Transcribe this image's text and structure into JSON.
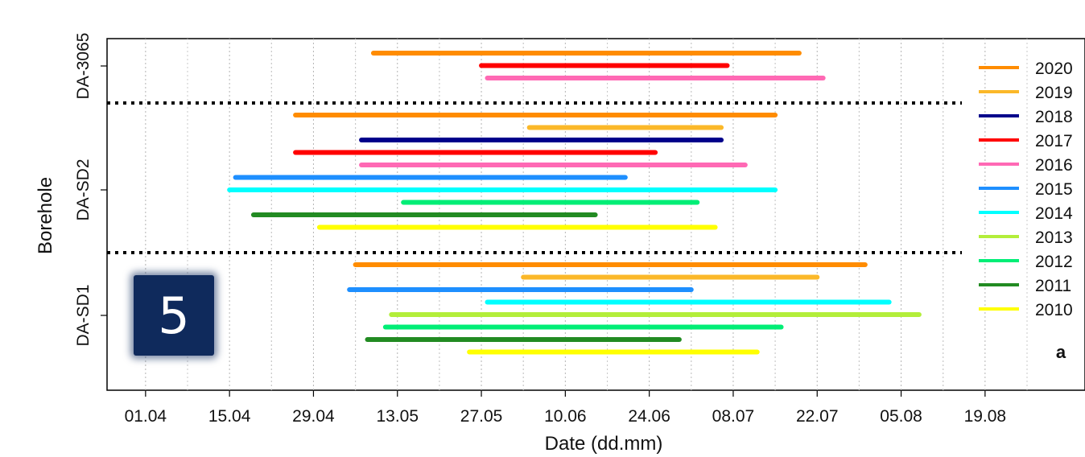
{
  "chart_data": {
    "type": "gantt",
    "xlabel": "Date (dd.mm)",
    "ylabel": "Borehole",
    "xlim": [
      "2022-03-19",
      "2022-09-05"
    ],
    "x_ticks": [
      "01.04",
      "15.04",
      "29.04",
      "13.05",
      "27.05",
      "10.06",
      "24.06",
      "08.07",
      "22.07",
      "05.08",
      "19.08"
    ],
    "grid": "vertical dotted",
    "groups": [
      "DA-3065",
      "DA-SD2",
      "DA-SD1"
    ],
    "group_separator": "dotted horizontal line",
    "legend_position": "right",
    "panel_label": "a",
    "series": [
      {
        "name": "2020",
        "color": "#ff8c00"
      },
      {
        "name": "2019",
        "color": "#fbb829"
      },
      {
        "name": "2018",
        "color": "#00008b"
      },
      {
        "name": "2017",
        "color": "#ff0000"
      },
      {
        "name": "2016",
        "color": "#ff69b4"
      },
      {
        "name": "2015",
        "color": "#1e8fff"
      },
      {
        "name": "2014",
        "color": "#00ffff"
      },
      {
        "name": "2013",
        "color": "#b3ee3a"
      },
      {
        "name": "2012",
        "color": "#00ee76"
      },
      {
        "name": "2011",
        "color": "#228b22"
      },
      {
        "name": "2010",
        "color": "#ffff00"
      }
    ],
    "bars": [
      {
        "group": "DA-3065",
        "year": "2020",
        "start": "2022-05-09",
        "end": "2022-07-19"
      },
      {
        "group": "DA-3065",
        "year": "2017",
        "start": "2022-05-27",
        "end": "2022-07-07"
      },
      {
        "group": "DA-3065",
        "year": "2016",
        "start": "2022-05-28",
        "end": "2022-07-23"
      },
      {
        "group": "DA-SD2",
        "year": "2020",
        "start": "2022-04-26",
        "end": "2022-07-15"
      },
      {
        "group": "DA-SD2",
        "year": "2019",
        "start": "2022-06-04",
        "end": "2022-07-06"
      },
      {
        "group": "DA-SD2",
        "year": "2018",
        "start": "2022-05-07",
        "end": "2022-07-06"
      },
      {
        "group": "DA-SD2",
        "year": "2017",
        "start": "2022-04-26",
        "end": "2022-06-25"
      },
      {
        "group": "DA-SD2",
        "year": "2016",
        "start": "2022-05-07",
        "end": "2022-07-10"
      },
      {
        "group": "DA-SD2",
        "year": "2015",
        "start": "2022-04-16",
        "end": "2022-06-20"
      },
      {
        "group": "DA-SD2",
        "year": "2014",
        "start": "2022-04-15",
        "end": "2022-07-15"
      },
      {
        "group": "DA-SD2",
        "year": "2012",
        "start": "2022-05-14",
        "end": "2022-07-02"
      },
      {
        "group": "DA-SD2",
        "year": "2011",
        "start": "2022-04-19",
        "end": "2022-06-15"
      },
      {
        "group": "DA-SD2",
        "year": "2010",
        "start": "2022-04-30",
        "end": "2022-07-05"
      },
      {
        "group": "DA-SD1",
        "year": "2020",
        "start": "2022-05-06",
        "end": "2022-07-30"
      },
      {
        "group": "DA-SD1",
        "year": "2019",
        "start": "2022-06-03",
        "end": "2022-07-22"
      },
      {
        "group": "DA-SD1",
        "year": "2015",
        "start": "2022-05-05",
        "end": "2022-07-01"
      },
      {
        "group": "DA-SD1",
        "year": "2014",
        "start": "2022-05-28",
        "end": "2022-08-03"
      },
      {
        "group": "DA-SD1",
        "year": "2013",
        "start": "2022-05-12",
        "end": "2022-08-08"
      },
      {
        "group": "DA-SD1",
        "year": "2012",
        "start": "2022-05-11",
        "end": "2022-07-16"
      },
      {
        "group": "DA-SD1",
        "year": "2011",
        "start": "2022-05-08",
        "end": "2022-06-29"
      },
      {
        "group": "DA-SD1",
        "year": "2010",
        "start": "2022-05-25",
        "end": "2022-07-12"
      }
    ]
  },
  "badge": {
    "text": "5"
  }
}
